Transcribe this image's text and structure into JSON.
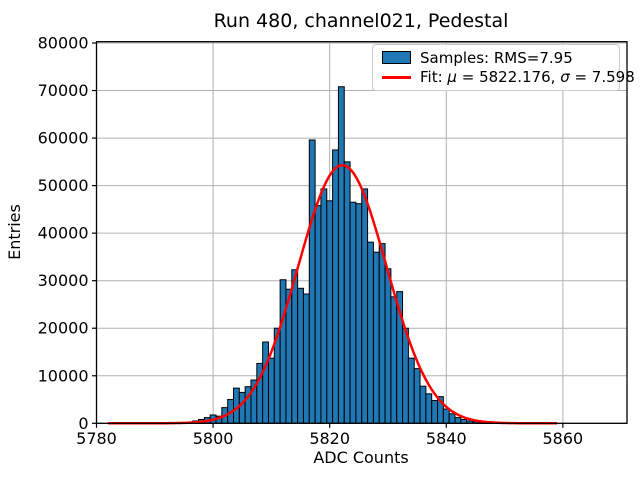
{
  "legend": {
    "samples_label": "Samples: RMS=7.95",
    "fit_prefix": "Fit: ",
    "fit_mu_symbol": "μ",
    "fit_mu_value": " = 5822.176, ",
    "fit_sigma_symbol": "σ",
    "fit_sigma_value": " = 7.598"
  },
  "colors": {
    "bar_fill": "#1f77b4",
    "bar_edge": "#000000",
    "fit_line": "#ff0000",
    "grid": "#b0b0b0",
    "background": "#ffffff",
    "text": "#000000"
  },
  "chart_data": {
    "type": "bar",
    "subtype": "histogram",
    "title": "Run 480, channel021, Pedestal",
    "xlabel": "ADC Counts",
    "ylabel": "Entries",
    "xlim": [
      5780,
      5871
    ],
    "ylim": [
      0,
      80000
    ],
    "x_ticks": [
      5780,
      5800,
      5820,
      5840,
      5860
    ],
    "y_ticks": [
      0,
      10000,
      20000,
      30000,
      40000,
      50000,
      60000,
      70000,
      80000
    ],
    "grid": true,
    "legend_position": "upper right",
    "legend_entries": [
      "Samples: RMS=7.95",
      "Fit: μ = 5822.176, σ = 7.598"
    ],
    "bin_width": 1,
    "bin_centers": [
      5797,
      5798,
      5799,
      5800,
      5801,
      5802,
      5803,
      5804,
      5805,
      5806,
      5807,
      5808,
      5809,
      5810,
      5811,
      5812,
      5813,
      5814,
      5815,
      5816,
      5817,
      5818,
      5819,
      5820,
      5821,
      5822,
      5823,
      5824,
      5825,
      5826,
      5827,
      5828,
      5829,
      5830,
      5831,
      5832,
      5833,
      5834,
      5835,
      5836,
      5837,
      5838,
      5839,
      5840,
      5841,
      5842,
      5843,
      5844,
      5845,
      5846,
      5847,
      5848
    ],
    "counts": [
      500,
      800,
      1200,
      1750,
      1500,
      3300,
      5000,
      7400,
      6500,
      7700,
      9100,
      12600,
      17100,
      13700,
      20000,
      30200,
      28200,
      32300,
      28400,
      27200,
      59600,
      45800,
      49300,
      46800,
      57500,
      70800,
      55000,
      46500,
      46200,
      49300,
      38100,
      36000,
      37800,
      32500,
      26600,
      27700,
      20000,
      13700,
      11500,
      7800,
      6200,
      4800,
      5600,
      3000,
      2000,
      1200,
      800,
      500,
      350,
      250,
      180,
      120
    ],
    "fit": {
      "type": "gaussian",
      "mu": 5822.176,
      "sigma": 7.598,
      "amplitude": 54300,
      "x_range": [
        5782,
        5859
      ],
      "samples_rms": 7.95
    }
  }
}
